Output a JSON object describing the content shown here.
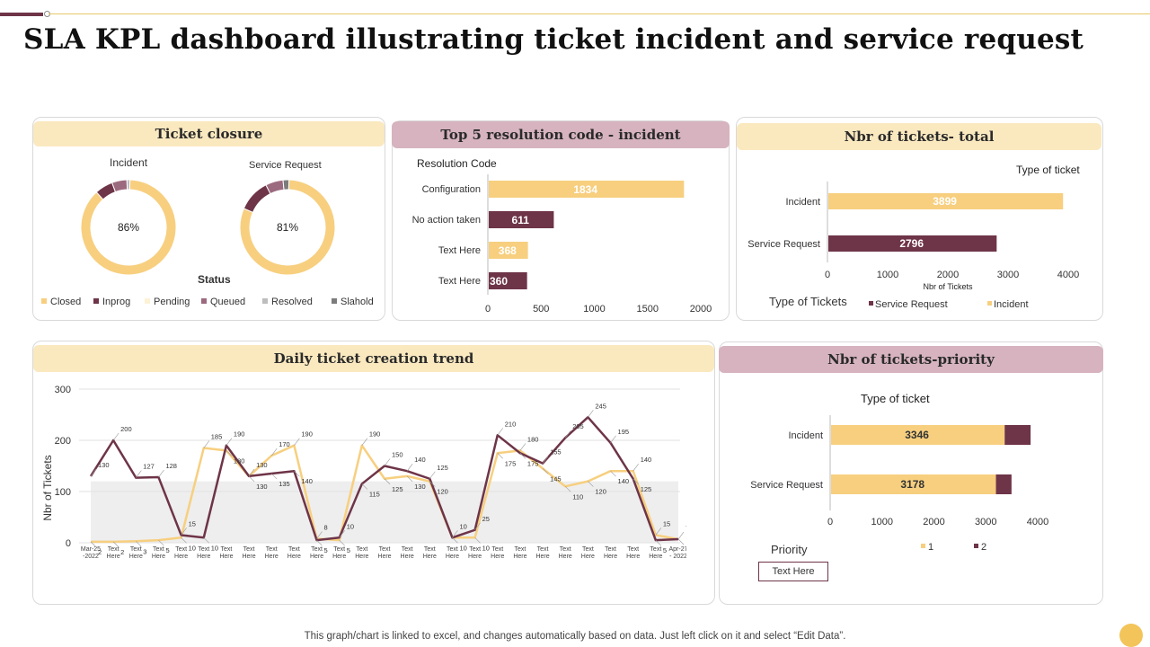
{
  "page": {
    "title": "SLA KPL dashboard illustrating ticket incident and service request",
    "footer_note": "This graph/chart is linked to excel,  and changes automatically based on data. Just left click on it and select “Edit Data”."
  },
  "colors": {
    "yellow": "#f7cf7f",
    "maroon": "#6e3448",
    "mauve": "#9c6a7e",
    "pending": "#fdf2d6",
    "resolved": "#bdbdbd",
    "slahold": "#7c7c7c",
    "header_yellow": "#fae8bf",
    "header_rose": "#d6b3be"
  },
  "panels": {
    "ticket_closure": {
      "header": "Ticket closure",
      "incident_label": "Incident",
      "incident_pct": "86%",
      "service_label": "Service Request",
      "service_pct": "81%",
      "status_label": "Status",
      "legend": [
        "Closed",
        "Inprog",
        "Pending",
        "Queued",
        "Resolved",
        "Slahold"
      ]
    },
    "top5": {
      "header": "Top 5 resolution code - incident"
    },
    "nbr_total": {
      "header": "Nbr of tickets- total"
    },
    "daily_trend": {
      "header": "Daily ticket creation trend"
    },
    "nbr_priority": {
      "header": "Nbr of tickets-priority",
      "priority_label": "Priority",
      "text_box": "Text Here"
    }
  },
  "chart_data": [
    {
      "type": "pie",
      "title": "Incident",
      "center_label": "86%",
      "labels": [
        "Closed",
        "Inprog",
        "Queued",
        "Resolved"
      ],
      "values": [
        86,
        6,
        5,
        1
      ]
    },
    {
      "type": "pie",
      "title": "Service Request",
      "center_label": "81%",
      "labels": [
        "Closed",
        "Inprog",
        "Queued",
        "Slahold"
      ],
      "values": [
        81,
        11,
        6,
        2
      ]
    },
    {
      "type": "bar",
      "orientation": "horizontal",
      "title": "Resolution Code",
      "categories": [
        "Configuration",
        "No action taken",
        "Text Here",
        "Text Here"
      ],
      "values": [
        1834,
        611,
        368,
        360
      ],
      "bar_colors": [
        "#f7cf7f",
        "#6e3448",
        "#f7cf7f",
        "#6e3448"
      ],
      "xlim": [
        0,
        2000
      ],
      "xticks": [
        0,
        500,
        1000,
        1500,
        2000
      ]
    },
    {
      "type": "bar",
      "orientation": "horizontal",
      "title": "Type of ticket",
      "categories": [
        "Incident",
        "Service Request"
      ],
      "values": [
        3899,
        2796
      ],
      "bar_colors": [
        "#f7cf7f",
        "#6e3448"
      ],
      "xlabel": "Nbr of Tickets",
      "xlim": [
        0,
        4000
      ],
      "xticks": [
        0,
        1000,
        2000,
        3000,
        4000
      ],
      "legend_title": "Type of Tickets",
      "legend": [
        "Service Request",
        "Incident"
      ]
    },
    {
      "type": "line",
      "title": "Daily ticket creation trend",
      "ylabel": "Nbr of Tickets",
      "ylim": [
        0,
        300
      ],
      "yticks": [
        0,
        100,
        200,
        300
      ],
      "x": [
        "Mar-25 -2022",
        "Text Here",
        "Text Here",
        "Text Here",
        "Text Here",
        "Text Here",
        "Text Here",
        "Text Here",
        "Text Here",
        "Text Here",
        "Text Here",
        "Text Here",
        "Text Here",
        "Text Here",
        "Text Here",
        "Text Here",
        "Text Here",
        "Text Here",
        "Text Here",
        "Text Here",
        "Text Here",
        "Text Here",
        "Text Here",
        "Text Here",
        "Text Here",
        "Text Here",
        "Apr-27 - 2022"
      ],
      "band": [
        0,
        120
      ],
      "series": [
        {
          "name": "Incident",
          "color": "#6e3448",
          "values": [
            130,
            200,
            127,
            128,
            15,
            10,
            190,
            130,
            135,
            140,
            5,
            10,
            115,
            150,
            140,
            125,
            10,
            25,
            210,
            175,
            155,
            205,
            245,
            195,
            125,
            5,
            7
          ]
        },
        {
          "name": "Service Request",
          "color": "#f7cf7f",
          "values": [
            2,
            2,
            3,
            5,
            10,
            185,
            180,
            130,
            170,
            190,
            8,
            5,
            190,
            125,
            130,
            120,
            10,
            10,
            175,
            180,
            145,
            110,
            120,
            140,
            140,
            15,
            7
          ]
        }
      ]
    },
    {
      "type": "bar",
      "orientation": "horizontal",
      "stacked": true,
      "title": "Type of ticket",
      "categories": [
        "Incident",
        "Service Request"
      ],
      "series": [
        {
          "name": "1",
          "color": "#f7cf7f",
          "values": [
            3346,
            3178
          ]
        },
        {
          "name": "2",
          "color": "#6e3448",
          "values": [
            500,
            300
          ]
        }
      ],
      "xlim": [
        0,
        4000
      ],
      "xticks": [
        0,
        1000,
        2000,
        3000,
        4000
      ],
      "legend_title": "Priority"
    }
  ]
}
